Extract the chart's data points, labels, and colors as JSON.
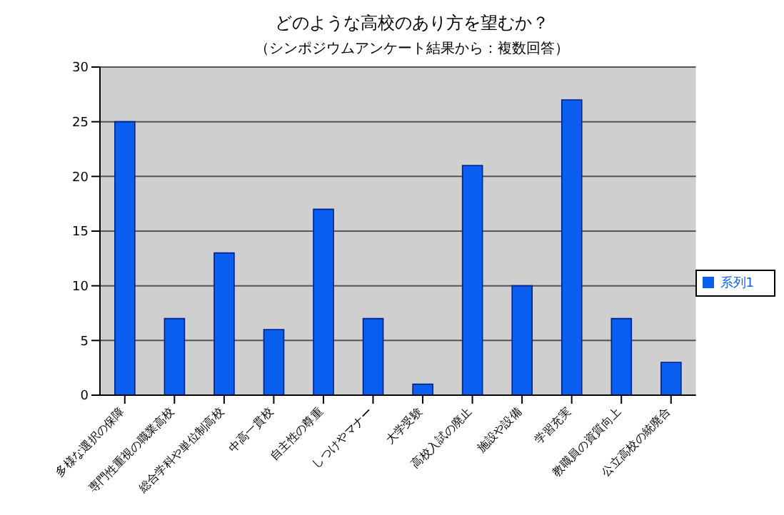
{
  "chart_data": {
    "type": "bar",
    "title": "どのような高校のあり方を望むか？",
    "subtitle": "（シンポジウムアンケート結果から：複数回答）",
    "categories": [
      "多様な選択の保障",
      "専門性重視の職業高校",
      "総合学科や単位制高校",
      "中高一貫校",
      "自主性の尊重",
      "しつけやマナー",
      "大学受験",
      "高校入試の廃止",
      "施設や設備",
      "学習充実",
      "教職員の資質向上",
      "公立高校の統廃合"
    ],
    "series": [
      {
        "name": "系列1",
        "color": "#0a5ef0",
        "values": [
          25,
          7,
          13,
          6,
          17,
          7,
          1,
          21,
          10,
          27,
          7,
          3
        ]
      }
    ],
    "ylim": [
      0,
      30
    ],
    "yticks": [
      0,
      5,
      10,
      15,
      20,
      25,
      30
    ],
    "grid": "y",
    "legend": "right"
  }
}
